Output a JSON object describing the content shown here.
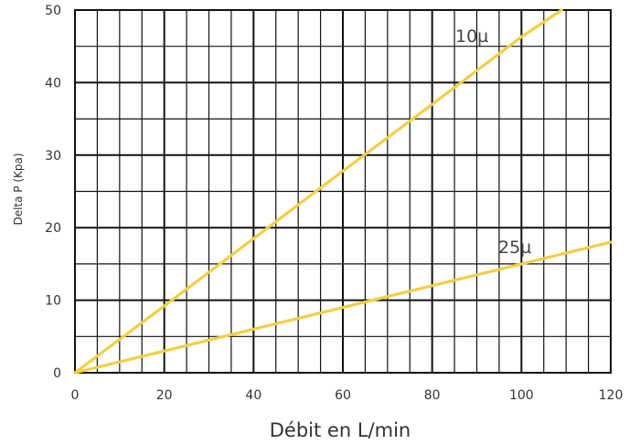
{
  "chart_data": {
    "type": "line",
    "title": "",
    "xlabel": "Débit en L/min",
    "ylabel": "Delta P (Kpa)",
    "xlim": [
      0,
      120
    ],
    "ylim": [
      0,
      50
    ],
    "x_ticks": [
      "0",
      "20",
      "40",
      "60",
      "80",
      "100",
      "120"
    ],
    "y_ticks": [
      "0",
      "10",
      "20",
      "30",
      "40",
      "50"
    ],
    "grid": true,
    "series": [
      {
        "name": "10µ",
        "color": "#f2cf45",
        "x": [
          0,
          20,
          40,
          60,
          80,
          100,
          109
        ],
        "y": [
          0,
          9.2,
          18.5,
          27.8,
          37,
          46.3,
          50
        ]
      },
      {
        "name": "25µ",
        "color": "#f2cf45",
        "x": [
          0,
          20,
          40,
          60,
          80,
          100,
          120
        ],
        "y": [
          0,
          3,
          6,
          9,
          12,
          15,
          18
        ]
      }
    ]
  }
}
